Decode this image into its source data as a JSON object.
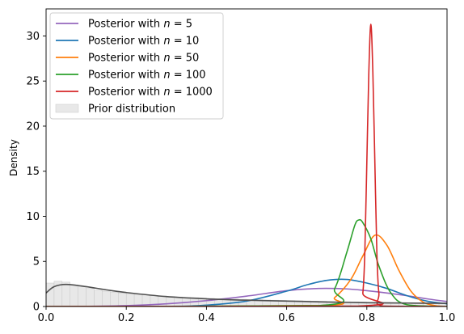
{
  "chart_data": {
    "type": "line",
    "title": "",
    "xlabel": "",
    "ylabel": "Density",
    "xlim": [
      0,
      1
    ],
    "ylim": [
      0,
      33
    ],
    "xticks": [
      0.0,
      0.2,
      0.4,
      0.6,
      0.8,
      1.0
    ],
    "xtick_labels": [
      "0.0",
      "0.2",
      "0.4",
      "0.6",
      "0.8",
      "1.0"
    ],
    "yticks": [
      0,
      5,
      10,
      15,
      20,
      25,
      30
    ],
    "ytick_labels": [
      "0",
      "5",
      "10",
      "15",
      "20",
      "25",
      "30"
    ],
    "grid": false,
    "legend_position": "top-left",
    "series": [
      {
        "name": "Posterior with n = 5",
        "color": "#9467bd",
        "x": [
          0.0,
          0.1,
          0.2,
          0.3,
          0.4,
          0.5,
          0.6,
          0.68,
          0.75,
          0.8,
          0.85,
          0.9,
          0.95,
          1.0
        ],
        "y": [
          0.0,
          0.02,
          0.1,
          0.3,
          0.65,
          1.15,
          1.75,
          2.0,
          1.95,
          1.75,
          1.5,
          1.2,
          0.85,
          0.55
        ]
      },
      {
        "name": "Posterior with n = 10",
        "color": "#1f77b4",
        "x": [
          0.0,
          0.3,
          0.4,
          0.5,
          0.6,
          0.65,
          0.7,
          0.75,
          0.8,
          0.85,
          0.9,
          0.95,
          1.0
        ],
        "y": [
          0.0,
          0.02,
          0.15,
          0.6,
          1.7,
          2.4,
          2.9,
          3.0,
          2.6,
          2.0,
          1.2,
          0.6,
          0.3
        ]
      },
      {
        "name": "Posterior with n = 50",
        "color": "#ff7f0e",
        "x": [
          0.0,
          0.68,
          0.72,
          0.76,
          0.79,
          0.82,
          0.85,
          0.88,
          0.91,
          0.94,
          0.97,
          1.0
        ],
        "y": [
          0.0,
          0.1,
          1.0,
          3.0,
          5.6,
          7.9,
          6.8,
          4.0,
          1.7,
          0.5,
          0.1,
          0.0
        ]
      },
      {
        "name": "Posterior with n = 100",
        "color": "#2ca02c",
        "x": [
          0.0,
          0.68,
          0.72,
          0.75,
          0.77,
          0.78,
          0.79,
          0.81,
          0.83,
          0.86,
          0.9,
          1.0
        ],
        "y": [
          0.0,
          0.1,
          2.0,
          6.0,
          9.0,
          9.6,
          9.3,
          7.5,
          4.5,
          1.5,
          0.2,
          0.0
        ]
      },
      {
        "name": "Posterior with n = 1000",
        "color": "#d62728",
        "x": [
          0.0,
          0.78,
          0.79,
          0.795,
          0.8,
          0.805,
          0.81,
          0.815,
          0.82,
          0.825,
          0.83,
          0.84,
          1.0
        ],
        "y": [
          0.0,
          0.05,
          1.5,
          6.0,
          16.0,
          26.0,
          31.3,
          26.0,
          16.0,
          6.0,
          1.5,
          0.05,
          0.0
        ]
      },
      {
        "name": "",
        "color": "#505050",
        "x": [
          0.0,
          0.02,
          0.05,
          0.1,
          0.15,
          0.2,
          0.3,
          0.4,
          0.5,
          0.6,
          0.7,
          0.8,
          0.9,
          1.0
        ],
        "y": [
          1.5,
          2.2,
          2.45,
          2.2,
          1.85,
          1.55,
          1.1,
          0.85,
          0.7,
          0.6,
          0.5,
          0.42,
          0.38,
          0.35
        ]
      }
    ],
    "prior_histogram": {
      "name": "Prior distribution",
      "color": "#e8e8e8",
      "edge_color": "#c8c8c8",
      "bin_width": 0.02,
      "values": [
        2.6,
        2.8,
        2.7,
        2.4,
        2.2,
        2.0,
        1.8,
        1.7,
        1.6,
        1.5,
        1.4,
        1.35,
        1.3,
        1.2,
        1.15,
        1.1,
        1.05,
        1.0,
        0.98,
        0.95,
        0.9,
        0.88,
        0.85,
        0.82,
        0.8,
        0.78,
        0.75,
        0.72,
        0.7,
        0.68,
        0.66,
        0.64,
        0.62,
        0.6,
        0.58,
        0.56,
        0.55,
        0.53,
        0.52,
        0.5,
        0.48,
        0.47,
        0.46,
        0.45,
        0.44,
        0.43,
        0.42,
        0.41,
        0.4,
        0.4
      ]
    },
    "legend": [
      {
        "prefix": "Posterior with ",
        "var": "n",
        "eq": " = ",
        "num": "5",
        "color": "#9467bd",
        "kind": "line"
      },
      {
        "prefix": "Posterior with ",
        "var": "n",
        "eq": " = ",
        "num": "10",
        "color": "#1f77b4",
        "kind": "line"
      },
      {
        "prefix": "Posterior with ",
        "var": "n",
        "eq": " = ",
        "num": "50",
        "color": "#ff7f0e",
        "kind": "line"
      },
      {
        "prefix": "Posterior with ",
        "var": "n",
        "eq": " = ",
        "num": "100",
        "color": "#2ca02c",
        "kind": "line"
      },
      {
        "prefix": "Posterior with ",
        "var": "n",
        "eq": " = ",
        "num": "1000",
        "color": "#d62728",
        "kind": "line"
      },
      {
        "prefix": "Prior distribution",
        "var": "",
        "eq": "",
        "num": "",
        "color": "#e8e8e8",
        "kind": "patch"
      }
    ]
  }
}
